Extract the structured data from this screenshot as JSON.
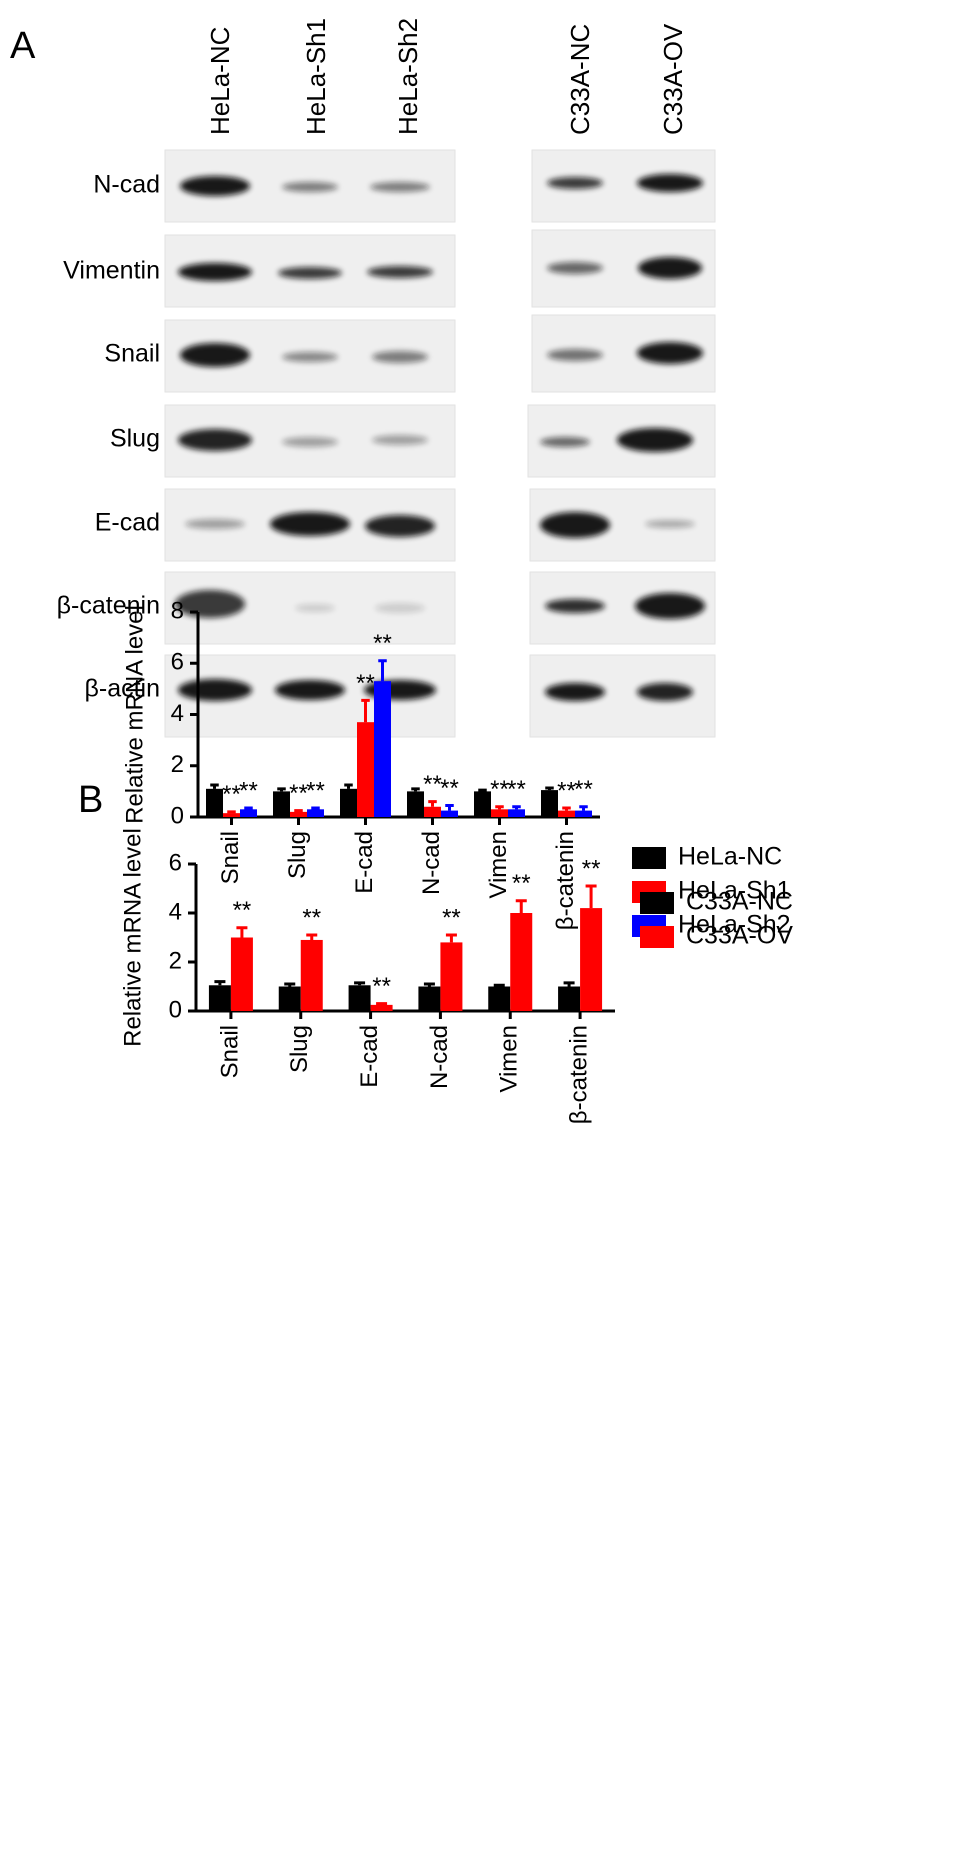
{
  "panel_labels": [
    "A",
    "B"
  ],
  "blot": {
    "lanes": [
      "HeLa-NC",
      "HeLa-Sh1",
      "HeLa-Sh2",
      "C33A-NC",
      "C33A-OV"
    ],
    "proteins": [
      "N-cad",
      "Vimentin",
      "Snail",
      "Slug",
      "E-cad",
      "β-catenin",
      "β-actin"
    ]
  },
  "chart_data": [
    {
      "type": "bar",
      "y_label": "Relative mRNA level",
      "categories": [
        "Snail",
        "Slug",
        "E-cad",
        "N-cad",
        "Vimen",
        "β-catenin"
      ],
      "ylim": [
        0,
        8
      ],
      "yticks": [
        0,
        2,
        4,
        6,
        8
      ],
      "series": [
        {
          "name": "HeLa-NC",
          "color": "#000000",
          "values": [
            1.1,
            1.0,
            1.1,
            1.0,
            1.0,
            1.05
          ],
          "errors": [
            0.15,
            0.1,
            0.15,
            0.1,
            0.05,
            0.08
          ]
        },
        {
          "name": "HeLa-Sh1",
          "color": "#ff0000",
          "values": [
            0.15,
            0.2,
            3.7,
            0.4,
            0.3,
            0.25
          ],
          "errors": [
            0.05,
            0.05,
            0.85,
            0.2,
            0.1,
            0.1
          ],
          "significance": [
            "**",
            "**",
            "**",
            "**",
            "**",
            "**"
          ]
        },
        {
          "name": "HeLa-Sh2",
          "color": "#0000ff",
          "values": [
            0.3,
            0.3,
            5.3,
            0.25,
            0.3,
            0.25
          ],
          "errors": [
            0.05,
            0.05,
            0.8,
            0.2,
            0.1,
            0.15
          ],
          "significance": [
            "**",
            "**",
            "**",
            "**",
            "**",
            "**"
          ]
        }
      ]
    },
    {
      "type": "bar",
      "y_label": "Relative mRNA level",
      "categories": [
        "Snail",
        "Slug",
        "E-cad",
        "N-cad",
        "Vimen",
        "β-catenin"
      ],
      "ylim": [
        0,
        6
      ],
      "yticks": [
        0,
        2,
        4,
        6
      ],
      "series": [
        {
          "name": "C33A-NC",
          "color": "#000000",
          "values": [
            1.05,
            1.0,
            1.05,
            1.0,
            1.0,
            1.0
          ],
          "errors": [
            0.15,
            0.1,
            0.1,
            0.1,
            0.05,
            0.15
          ]
        },
        {
          "name": "C33A-OV",
          "color": "#ff0000",
          "values": [
            3.0,
            2.9,
            0.25,
            2.8,
            4.0,
            4.2
          ],
          "errors": [
            0.4,
            0.2,
            0.05,
            0.3,
            0.5,
            0.9
          ],
          "significance": [
            "**",
            "**",
            "**",
            "**",
            "**",
            "**"
          ]
        }
      ]
    }
  ]
}
